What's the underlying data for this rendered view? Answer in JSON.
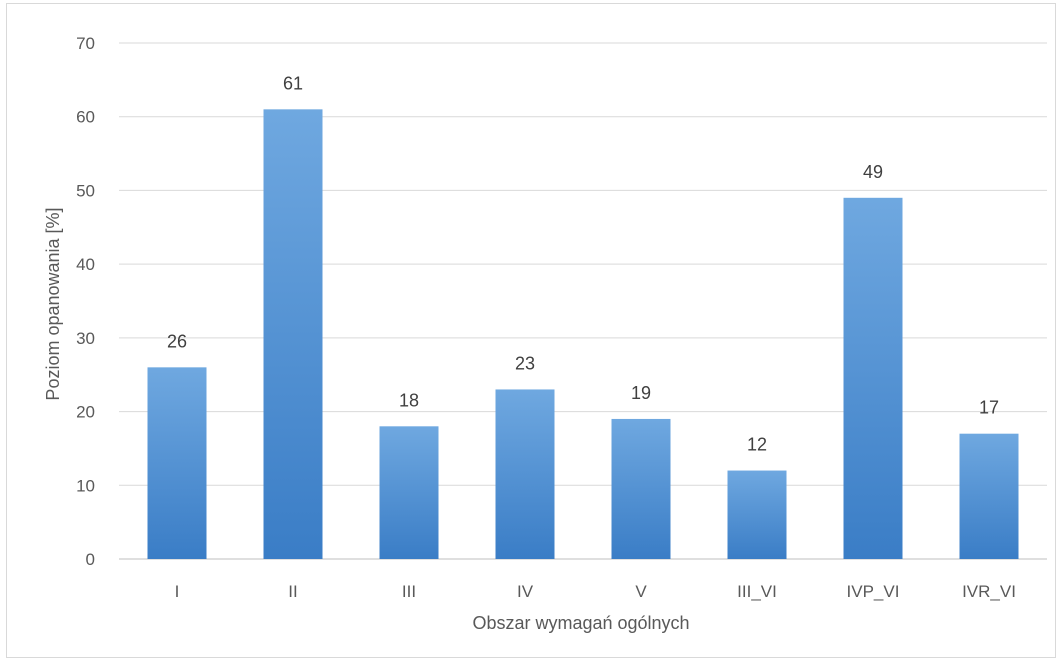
{
  "chart_data": {
    "type": "bar",
    "categories": [
      "I",
      "II",
      "III",
      "IV",
      "V",
      "III_VI",
      "IVP_VI",
      "IVR_VI"
    ],
    "values": [
      26,
      61,
      18,
      23,
      19,
      12,
      49,
      17
    ],
    "value_labels": [
      "26",
      "61",
      "18",
      "23",
      "19",
      "12",
      "49",
      "17"
    ],
    "title": "",
    "xlabel": "Obszar wymagań ogólnych",
    "ylabel": "Poziom opanowania [%]",
    "ylim": [
      0,
      70
    ],
    "yticks": [
      "0",
      "10",
      "20",
      "30",
      "40",
      "50",
      "60",
      "70"
    ],
    "grid": true,
    "legend": "none",
    "colors": {
      "bar_top": "#6fa8e0",
      "bar_bottom": "#3a7dc6"
    }
  }
}
